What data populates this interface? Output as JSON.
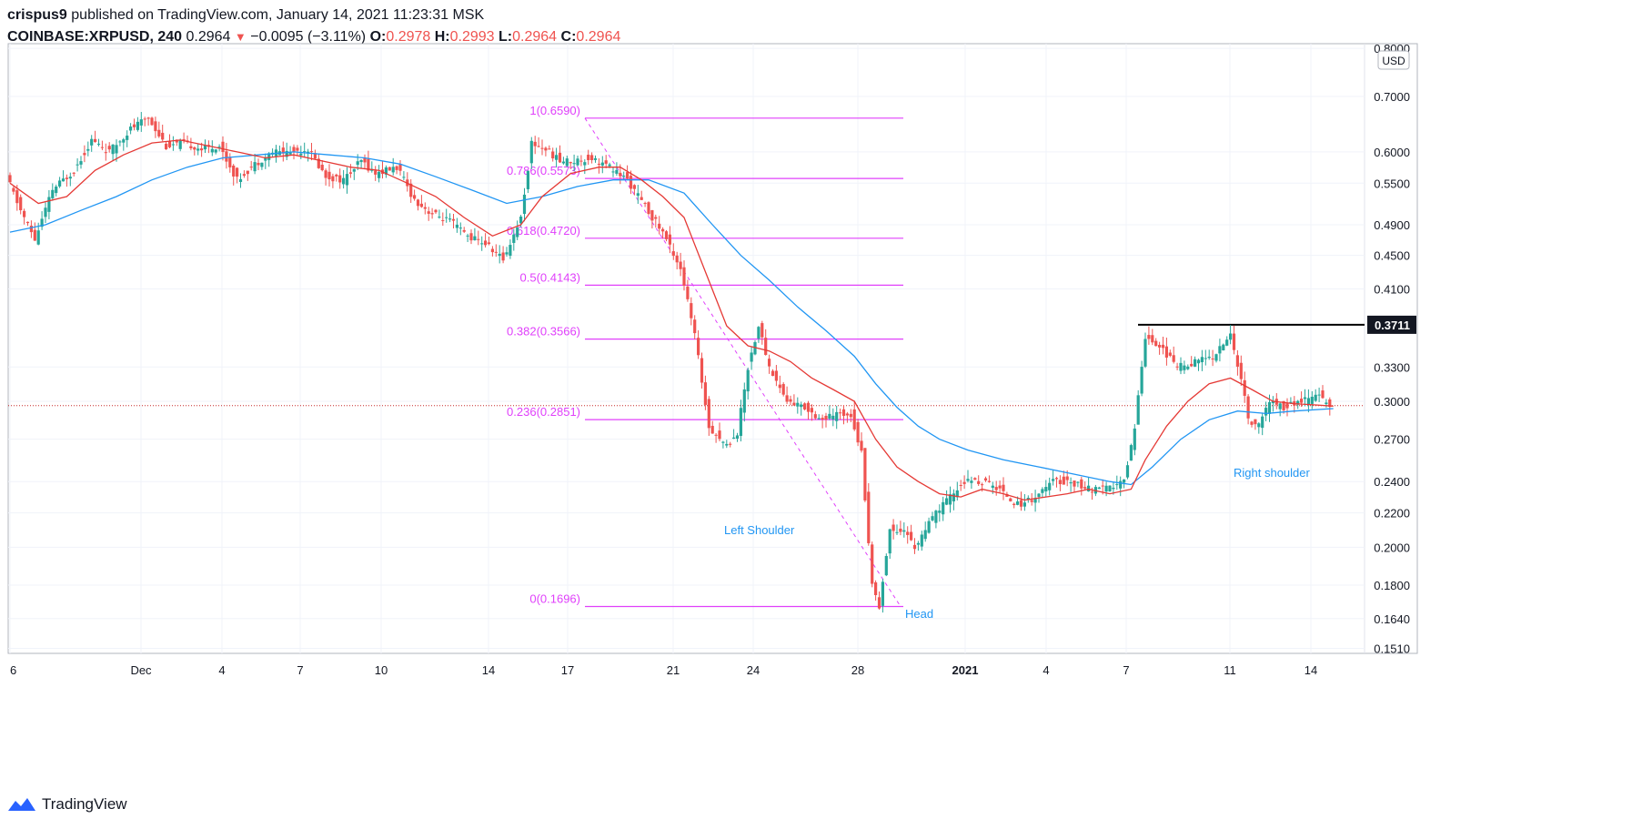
{
  "header": {
    "publisher": "crispus9",
    "published_text": "published on TradingView.com, January 14, 2021 11:23:31 MSK",
    "symbol": "COINBASE:XRPUSD, 240",
    "last": "0.2964",
    "change": "−0.0095 (−3.11%)",
    "o_label": "O:",
    "o_value": "0.2978",
    "h_label": "H:",
    "h_value": "0.2993",
    "l_label": "L:",
    "l_value": "0.2964",
    "c_label": "C:",
    "c_value": "0.2964"
  },
  "footer": {
    "brand": "TradingView"
  },
  "colors": {
    "up": "#26a69a",
    "down": "#ef5350",
    "ma_fast": "#e53935",
    "ma_slow": "#2196f3",
    "fib": "#e040fb",
    "annotation": "#2196f3",
    "price_line": "#c62828"
  },
  "chart_data": {
    "type": "candlestick",
    "title": "COINBASE:XRPUSD, 240",
    "y_unit": "USD",
    "y_scale": "log",
    "y_ticks": [
      "0.8000",
      "0.7000",
      "0.6000",
      "0.5500",
      "0.4900",
      "0.4500",
      "0.4100",
      "0.3300",
      "0.3000",
      "0.2700",
      "0.2400",
      "0.2200",
      "0.2000",
      "0.1800",
      "0.1640",
      "0.1510"
    ],
    "x_ticks": [
      "6",
      "Dec",
      "4",
      "7",
      "10",
      "14",
      "17",
      "21",
      "24",
      "28",
      "2021",
      "4",
      "7",
      "11",
      "14"
    ],
    "current_price": 0.2964,
    "resistance": {
      "value": 0.3711,
      "label": "0.3711"
    },
    "fib_levels": [
      {
        "label": "1(0.6590)",
        "value": 0.659
      },
      {
        "label": "0.786(0.5573)",
        "value": 0.5573
      },
      {
        "label": "0.618(0.4720)",
        "value": 0.472
      },
      {
        "label": "0.5(0.4143)",
        "value": 0.4143
      },
      {
        "label": "0.382(0.3566)",
        "value": 0.3566
      },
      {
        "label": "0.236(0.2851)",
        "value": 0.2851
      },
      {
        "label": "0(0.1696)",
        "value": 0.1696
      }
    ],
    "annotations": [
      "Left Shoulder",
      "Head",
      "Right shoulder"
    ],
    "price_path": [
      [
        0,
        0.56
      ],
      [
        4,
        0.51
      ],
      [
        8,
        0.47
      ],
      [
        13,
        0.54
      ],
      [
        19,
        0.57
      ],
      [
        24,
        0.62
      ],
      [
        29,
        0.6
      ],
      [
        35,
        0.64
      ],
      [
        40,
        0.66
      ],
      [
        45,
        0.61
      ],
      [
        50,
        0.615
      ],
      [
        55,
        0.605
      ],
      [
        60,
        0.61
      ],
      [
        65,
        0.555
      ],
      [
        70,
        0.58
      ],
      [
        75,
        0.6
      ],
      [
        80,
        0.6
      ],
      [
        85,
        0.605
      ],
      [
        90,
        0.56
      ],
      [
        95,
        0.555
      ],
      [
        100,
        0.585
      ],
      [
        104,
        0.565
      ],
      [
        110,
        0.575
      ],
      [
        115,
        0.525
      ],
      [
        120,
        0.505
      ],
      [
        125,
        0.495
      ],
      [
        130,
        0.475
      ],
      [
        135,
        0.465
      ],
      [
        140,
        0.445
      ],
      [
        145,
        0.5
      ],
      [
        148,
        0.615
      ],
      [
        152,
        0.605
      ],
      [
        156,
        0.585
      ],
      [
        160,
        0.585
      ],
      [
        165,
        0.59
      ],
      [
        170,
        0.575
      ],
      [
        175,
        0.555
      ],
      [
        180,
        0.515
      ],
      [
        185,
        0.48
      ],
      [
        190,
        0.435
      ],
      [
        194,
        0.36
      ],
      [
        198,
        0.28
      ],
      [
        203,
        0.265
      ],
      [
        206,
        0.275
      ],
      [
        209,
        0.33
      ],
      [
        212,
        0.37
      ],
      [
        215,
        0.33
      ],
      [
        220,
        0.3
      ],
      [
        225,
        0.295
      ],
      [
        230,
        0.285
      ],
      [
        235,
        0.29
      ],
      [
        238,
        0.29
      ],
      [
        241,
        0.26
      ],
      [
        244,
        0.18
      ],
      [
        246,
        0.17
      ],
      [
        249,
        0.21
      ],
      [
        253,
        0.21
      ],
      [
        256,
        0.2
      ],
      [
        262,
        0.22
      ],
      [
        266,
        0.23
      ],
      [
        270,
        0.24
      ],
      [
        275,
        0.24
      ],
      [
        280,
        0.235
      ],
      [
        285,
        0.225
      ],
      [
        290,
        0.23
      ],
      [
        295,
        0.24
      ],
      [
        300,
        0.24
      ],
      [
        305,
        0.235
      ],
      [
        310,
        0.235
      ],
      [
        315,
        0.24
      ],
      [
        318,
        0.28
      ],
      [
        321,
        0.36
      ],
      [
        325,
        0.35
      ],
      [
        330,
        0.33
      ],
      [
        335,
        0.335
      ],
      [
        340,
        0.34
      ],
      [
        345,
        0.36
      ],
      [
        348,
        0.32
      ],
      [
        350,
        0.285
      ],
      [
        353,
        0.28
      ],
      [
        356,
        0.3
      ],
      [
        360,
        0.295
      ],
      [
        365,
        0.3
      ],
      [
        370,
        0.305
      ],
      [
        373,
        0.2964
      ]
    ],
    "ma_fast": [
      [
        0,
        0.55
      ],
      [
        8,
        0.52
      ],
      [
        16,
        0.53
      ],
      [
        24,
        0.57
      ],
      [
        32,
        0.595
      ],
      [
        40,
        0.615
      ],
      [
        48,
        0.62
      ],
      [
        56,
        0.61
      ],
      [
        64,
        0.6
      ],
      [
        72,
        0.59
      ],
      [
        80,
        0.595
      ],
      [
        88,
        0.585
      ],
      [
        96,
        0.575
      ],
      [
        104,
        0.57
      ],
      [
        112,
        0.55
      ],
      [
        120,
        0.53
      ],
      [
        128,
        0.5
      ],
      [
        136,
        0.475
      ],
      [
        144,
        0.49
      ],
      [
        150,
        0.53
      ],
      [
        158,
        0.565
      ],
      [
        166,
        0.575
      ],
      [
        172,
        0.575
      ],
      [
        178,
        0.555
      ],
      [
        184,
        0.53
      ],
      [
        190,
        0.5
      ],
      [
        196,
        0.43
      ],
      [
        202,
        0.37
      ],
      [
        208,
        0.35
      ],
      [
        214,
        0.345
      ],
      [
        220,
        0.335
      ],
      [
        226,
        0.32
      ],
      [
        232,
        0.31
      ],
      [
        238,
        0.3
      ],
      [
        244,
        0.27
      ],
      [
        250,
        0.25
      ],
      [
        256,
        0.24
      ],
      [
        262,
        0.232
      ],
      [
        268,
        0.23
      ],
      [
        274,
        0.235
      ],
      [
        280,
        0.232
      ],
      [
        286,
        0.228
      ],
      [
        292,
        0.23
      ],
      [
        298,
        0.232
      ],
      [
        304,
        0.235
      ],
      [
        310,
        0.232
      ],
      [
        316,
        0.235
      ],
      [
        320,
        0.255
      ],
      [
        326,
        0.28
      ],
      [
        332,
        0.3
      ],
      [
        338,
        0.315
      ],
      [
        344,
        0.32
      ],
      [
        350,
        0.31
      ],
      [
        356,
        0.3
      ],
      [
        362,
        0.298
      ],
      [
        368,
        0.297
      ],
      [
        373,
        0.296
      ]
    ],
    "ma_slow": [
      [
        0,
        0.48
      ],
      [
        10,
        0.49
      ],
      [
        20,
        0.51
      ],
      [
        30,
        0.53
      ],
      [
        40,
        0.555
      ],
      [
        50,
        0.575
      ],
      [
        60,
        0.59
      ],
      [
        70,
        0.595
      ],
      [
        80,
        0.6
      ],
      [
        90,
        0.595
      ],
      [
        100,
        0.59
      ],
      [
        110,
        0.58
      ],
      [
        120,
        0.56
      ],
      [
        130,
        0.54
      ],
      [
        140,
        0.52
      ],
      [
        150,
        0.53
      ],
      [
        160,
        0.545
      ],
      [
        170,
        0.555
      ],
      [
        180,
        0.555
      ],
      [
        190,
        0.535
      ],
      [
        198,
        0.49
      ],
      [
        206,
        0.45
      ],
      [
        214,
        0.42
      ],
      [
        222,
        0.39
      ],
      [
        230,
        0.365
      ],
      [
        238,
        0.34
      ],
      [
        244,
        0.315
      ],
      [
        250,
        0.295
      ],
      [
        256,
        0.28
      ],
      [
        262,
        0.27
      ],
      [
        270,
        0.262
      ],
      [
        280,
        0.255
      ],
      [
        290,
        0.25
      ],
      [
        300,
        0.245
      ],
      [
        310,
        0.24
      ],
      [
        316,
        0.238
      ],
      [
        322,
        0.25
      ],
      [
        330,
        0.27
      ],
      [
        338,
        0.285
      ],
      [
        346,
        0.292
      ],
      [
        354,
        0.29
      ],
      [
        362,
        0.292
      ],
      [
        373,
        0.294
      ]
    ]
  }
}
